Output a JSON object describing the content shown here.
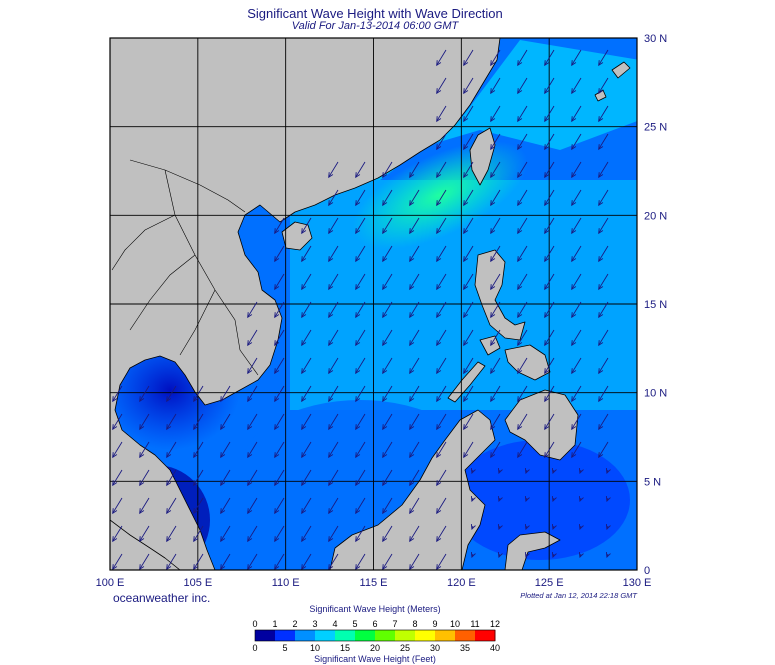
{
  "header": {
    "title": "Significant Wave Height with Wave Direction",
    "subtitle": "Valid For Jan-13-2014 06:00 GMT"
  },
  "map": {
    "lon_range": [
      100,
      130
    ],
    "lat_range": [
      0,
      30
    ],
    "grid_step_degrees": 5,
    "lon_labels": [
      "100 E",
      "105 E",
      "110 E",
      "115 E",
      "120 E",
      "125 E",
      "130 E"
    ],
    "lat_labels": [
      "0",
      "5 N",
      "10 N",
      "15 N",
      "20 N",
      "25 N",
      "30 N"
    ],
    "prevailing_wave_direction": "toward southwest",
    "land_color": "#c0c0c0",
    "coast_color": "#000000",
    "arrow_color": "#1a1a80"
  },
  "footer": {
    "credit": "oceanweather inc.",
    "plotted": "Plotted at Jan 12, 2014 22:18 GMT"
  },
  "legend": {
    "meters_title": "Significant Wave Height (Meters)",
    "feet_title": "Significant Wave Height (Feet)",
    "meters_ticks": [
      "0",
      "1",
      "2",
      "3",
      "4",
      "5",
      "6",
      "7",
      "8",
      "9",
      "10",
      "11",
      "12"
    ],
    "feet_ticks": [
      "0",
      "5",
      "10",
      "15",
      "20",
      "25",
      "30",
      "35",
      "40"
    ],
    "colors": [
      "#0000a0",
      "#0030ff",
      "#0090ff",
      "#00d0ff",
      "#00ffb0",
      "#00ff40",
      "#60ff00",
      "#c0ff00",
      "#ffff00",
      "#ffc000",
      "#ff6000",
      "#ff0000"
    ]
  }
}
